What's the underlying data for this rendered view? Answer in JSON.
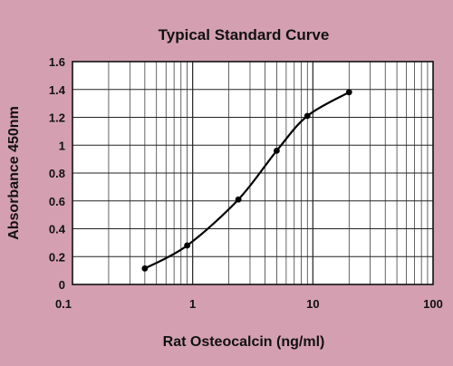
{
  "chart_data": {
    "type": "line",
    "title": "Typical Standard Curve",
    "xlabel": "Rat Osteocalcin (ng/ml)",
    "ylabel": "Absorbance 450nm",
    "x_scale": "log",
    "xlim": [
      0.1,
      100
    ],
    "ylim": [
      0,
      1.6
    ],
    "x_ticks": [
      0.1,
      1,
      10,
      100
    ],
    "x_tick_labels": [
      "0.1",
      "1",
      "10",
      "100"
    ],
    "y_ticks": [
      0,
      0.2,
      0.4,
      0.6,
      0.8,
      1,
      1.2,
      1.4,
      1.6
    ],
    "y_tick_labels": [
      "0",
      "0.2",
      "0.4",
      "0.6",
      "0.8",
      "1",
      "1.2",
      "1.4",
      "1.6"
    ],
    "grid": true,
    "legend": "none",
    "series": [
      {
        "x": [
          0.4,
          0.9,
          2.4,
          5,
          9,
          20
        ],
        "y": [
          0.115,
          0.28,
          0.61,
          0.96,
          1.21,
          1.38
        ],
        "color": "#000000",
        "markers": true,
        "smooth": true
      }
    ]
  },
  "colors": {
    "background": "#d4a0b1",
    "plot_area": "#ffffff",
    "grid": "#222222",
    "line": "#000000"
  }
}
